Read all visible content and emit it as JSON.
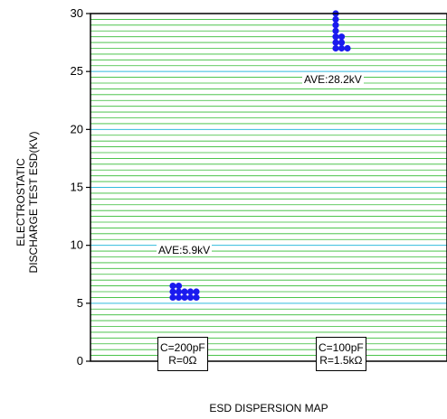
{
  "chart_data": {
    "type": "scatter",
    "title": "",
    "ylabel_lines": [
      "ELECTROSTATIC",
      "DISCHARGE TEST ESD(KV)"
    ],
    "xlabel": "ESD DISPERSION MAP",
    "ylim": [
      0,
      30
    ],
    "yticks": [
      0,
      5,
      10,
      15,
      20,
      25,
      30
    ],
    "grid": true,
    "categories": [
      {
        "label_line1": "C=200pF",
        "label_line2": "R=0Ω"
      },
      {
        "label_line1": "C=100pF",
        "label_line2": "R=1.5kΩ"
      }
    ],
    "series": [
      {
        "category_index": 0,
        "points": [
          6.5,
          6.5,
          6.0,
          6.0,
          6.0,
          6.0,
          6.0,
          5.5,
          5.5,
          5.5,
          5.5,
          5.5
        ],
        "cols": [
          0,
          1,
          0,
          1,
          2,
          3,
          4,
          0,
          1,
          2,
          3,
          4
        ],
        "average_label": "AVE:5.9kV"
      },
      {
        "category_index": 1,
        "points": [
          30.0,
          29.5,
          29.0,
          28.5,
          28.0,
          28.0,
          27.5,
          27.5,
          27.0,
          27.0,
          27.0
        ],
        "cols": [
          0,
          0,
          0,
          0,
          0,
          1,
          0,
          1,
          0,
          1,
          2
        ],
        "average_label": "AVE:28.2kV"
      }
    ],
    "colors": {
      "major_grid": "#33bbdd",
      "minor_grid": "#33bb33",
      "point": "#1a1aee",
      "axis": "#000000"
    }
  }
}
